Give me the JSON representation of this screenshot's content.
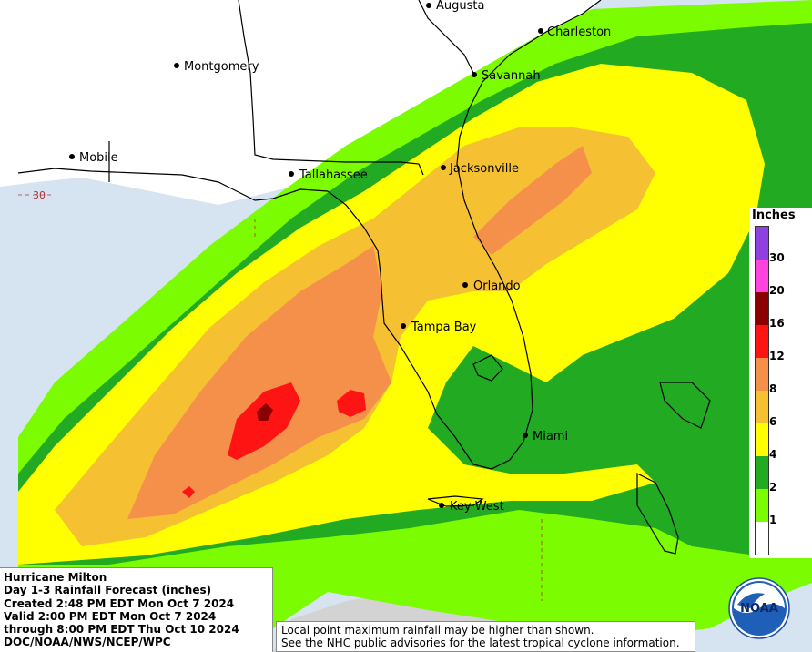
{
  "map": {
    "cities": [
      {
        "name": "Augusta"
      },
      {
        "name": "Charleston"
      },
      {
        "name": "Montgomery"
      },
      {
        "name": "Savannah"
      },
      {
        "name": "Mobile"
      },
      {
        "name": "Tallahassee"
      },
      {
        "name": "Jacksonville"
      },
      {
        "name": "Orlando"
      },
      {
        "name": "Tampa Bay"
      },
      {
        "name": "Miami"
      },
      {
        "name": "Key West"
      }
    ],
    "latitude_label": "30",
    "colors": {
      "ocean": "#d6e4f2",
      "land": "#ffffff",
      "gray_land": "#d3d3d3"
    }
  },
  "info": {
    "lines": [
      "Hurricane Milton",
      "Day 1-3 Rainfall Forecast (inches)",
      "Created 2:48 PM EDT Mon Oct 7 2024",
      "Valid 2:00 PM EDT Mon Oct 7 2024",
      "through 8:00 PM EDT Thu Oct 10 2024",
      "DOC/NOAA/NWS/NCEP/WPC"
    ]
  },
  "notice": {
    "line1": "Local point maximum rainfall may be higher than shown.",
    "line2": "See the NHC public advisories for the latest tropical cyclone information."
  },
  "legend": {
    "title": "Inches",
    "bins": [
      {
        "min": 0,
        "color": "#ffffff"
      },
      {
        "min": 1,
        "color": "#7cfc00"
      },
      {
        "min": 2,
        "color": "#22aa22"
      },
      {
        "min": 4,
        "color": "#ffff00"
      },
      {
        "min": 6,
        "color": "#f5c032"
      },
      {
        "min": 8,
        "color": "#f5904a"
      },
      {
        "min": 12,
        "color": "#ff1414"
      },
      {
        "min": 16,
        "color": "#8b0000"
      },
      {
        "min": 20,
        "color": "#ff44dd"
      },
      {
        "min": 30,
        "color": "#9040e0"
      }
    ],
    "ticks": [
      "1",
      "2",
      "4",
      "6",
      "8",
      "12",
      "16",
      "20",
      "30"
    ]
  },
  "logo": {
    "text": "NOAA"
  }
}
